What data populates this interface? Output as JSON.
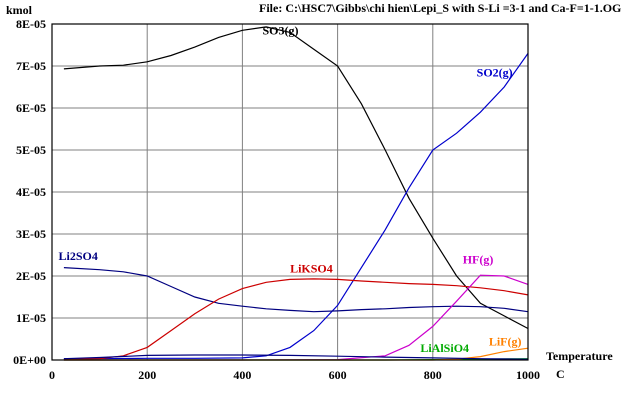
{
  "header": {
    "file_label": "File: C:\\HSC7\\Gibbs\\chi hien\\Lepi_S with S-Li =3-1 and Ca-F=1-1.OG"
  },
  "chart_data": {
    "type": "line",
    "ylabel": "kmol",
    "xlabel": "Temperature",
    "xunit": "C",
    "xlim": [
      0,
      1000
    ],
    "ylim": [
      0,
      8e-05
    ],
    "grid": true,
    "x_ticks": [
      0,
      200,
      400,
      600,
      800,
      1000
    ],
    "x_tick_labels": [
      "0",
      "200",
      "400",
      "600",
      "800",
      "1000"
    ],
    "y_ticks": [
      0,
      1e-05,
      2e-05,
      3e-05,
      4e-05,
      5e-05,
      6e-05,
      7e-05,
      8e-05
    ],
    "y_tick_labels": [
      "0E+00",
      "1E-05",
      "2E-05",
      "3E-05",
      "4E-05",
      "5E-05",
      "6E-05",
      "7E-05",
      "8E-05"
    ],
    "series": [
      {
        "name": "SO3(g)",
        "color": "#000000",
        "x": [
          25,
          100,
          150,
          200,
          250,
          300,
          350,
          400,
          450,
          500,
          550,
          600,
          650,
          700,
          750,
          800,
          850,
          900,
          950,
          1000
        ],
        "values": [
          6.93e-05,
          7e-05,
          7.02e-05,
          7.1e-05,
          7.25e-05,
          7.45e-05,
          7.68e-05,
          7.85e-05,
          7.93e-05,
          7.8e-05,
          7.4e-05,
          7e-05,
          6.1e-05,
          5e-05,
          3.85e-05,
          2.9e-05,
          2e-05,
          1.35e-05,
          1.05e-05,
          7.5e-06
        ]
      },
      {
        "name": "SO2(g)",
        "color": "#0000cc",
        "x": [
          25,
          100,
          200,
          300,
          400,
          450,
          500,
          550,
          600,
          650,
          700,
          750,
          800,
          850,
          900,
          950,
          1000
        ],
        "values": [
          3e-07,
          3e-07,
          4e-07,
          4e-07,
          5e-07,
          1e-06,
          3e-06,
          7e-06,
          1.3e-05,
          2.2e-05,
          3.1e-05,
          4.1e-05,
          5e-05,
          5.4e-05,
          5.9e-05,
          6.5e-05,
          7.3e-05
        ]
      },
      {
        "name": "Li2SO4",
        "color": "#000080",
        "x": [
          25,
          100,
          150,
          200,
          250,
          300,
          350,
          400,
          450,
          500,
          550,
          600,
          650,
          700,
          750,
          800,
          850,
          900,
          950,
          1000
        ],
        "values": [
          2.2e-05,
          2.15e-05,
          2.1e-05,
          2e-05,
          1.75e-05,
          1.5e-05,
          1.35e-05,
          1.28e-05,
          1.22e-05,
          1.18e-05,
          1.15e-05,
          1.17e-05,
          1.2e-05,
          1.22e-05,
          1.25e-05,
          1.27e-05,
          1.28e-05,
          1.27e-05,
          1.23e-05,
          1.15e-05
        ]
      },
      {
        "name": "LiKSO4",
        "color": "#cc0000",
        "x": [
          25,
          100,
          150,
          200,
          250,
          300,
          350,
          400,
          450,
          500,
          550,
          600,
          650,
          700,
          750,
          800,
          850,
          900,
          950,
          1000
        ],
        "values": [
          1e-07,
          3e-07,
          1e-06,
          3e-06,
          7e-06,
          1.1e-05,
          1.45e-05,
          1.7e-05,
          1.85e-05,
          1.92e-05,
          1.93e-05,
          1.92e-05,
          1.88e-05,
          1.85e-05,
          1.82e-05,
          1.8e-05,
          1.77e-05,
          1.72e-05,
          1.65e-05,
          1.55e-05
        ]
      },
      {
        "name": "HF(g)",
        "color": "#cc00cc",
        "x": [
          25,
          200,
          400,
          600,
          700,
          750,
          800,
          850,
          900,
          950,
          1000
        ],
        "values": [
          0,
          0,
          0,
          1e-07,
          1e-06,
          3.5e-06,
          8e-06,
          1.4e-05,
          2.02e-05,
          2e-05,
          1.8e-05
        ]
      },
      {
        "name": "LiAlSiO4",
        "color": "#00aa00",
        "x": [
          25,
          200,
          400,
          600,
          700,
          800,
          900,
          1000
        ],
        "values": [
          0,
          0,
          0,
          0,
          0,
          1e-07,
          2e-07,
          3e-07
        ]
      },
      {
        "name": "LiF(g)",
        "color": "#ff8000",
        "x": [
          25,
          800,
          850,
          900,
          950,
          1000
        ],
        "values": [
          0,
          0,
          2e-07,
          8e-07,
          2e-06,
          2.8e-06
        ]
      },
      {
        "name": "",
        "color": "#000080",
        "x": [
          25,
          100,
          200,
          300,
          400,
          500,
          600,
          700,
          800,
          900,
          1000
        ],
        "values": [
          3e-07,
          6e-07,
          1.1e-06,
          1.2e-06,
          1.2e-06,
          1.1e-06,
          9e-07,
          7e-07,
          5e-07,
          3e-07,
          2e-07
        ]
      }
    ],
    "annotations": [
      {
        "text": "SO3(g)",
        "color": "#000000",
        "x": 480,
        "y": 7.75e-05
      },
      {
        "text": "SO2(g)",
        "color": "#0000cc",
        "x": 930,
        "y": 6.75e-05
      },
      {
        "text": "Li2SO4",
        "color": "#000080",
        "x": 55,
        "y": 2.38e-05
      },
      {
        "text": "LiKSO4",
        "color": "#cc0000",
        "x": 545,
        "y": 2.08e-05
      },
      {
        "text": "HF(g)",
        "color": "#cc00cc",
        "x": 895,
        "y": 2.3e-05
      },
      {
        "text": "LiAlSiO4",
        "color": "#00aa00",
        "x": 825,
        "y": 1.9e-06
      },
      {
        "text": "LiF(g)",
        "color": "#ff8000",
        "x": 952,
        "y": 3.4e-06
      }
    ]
  }
}
